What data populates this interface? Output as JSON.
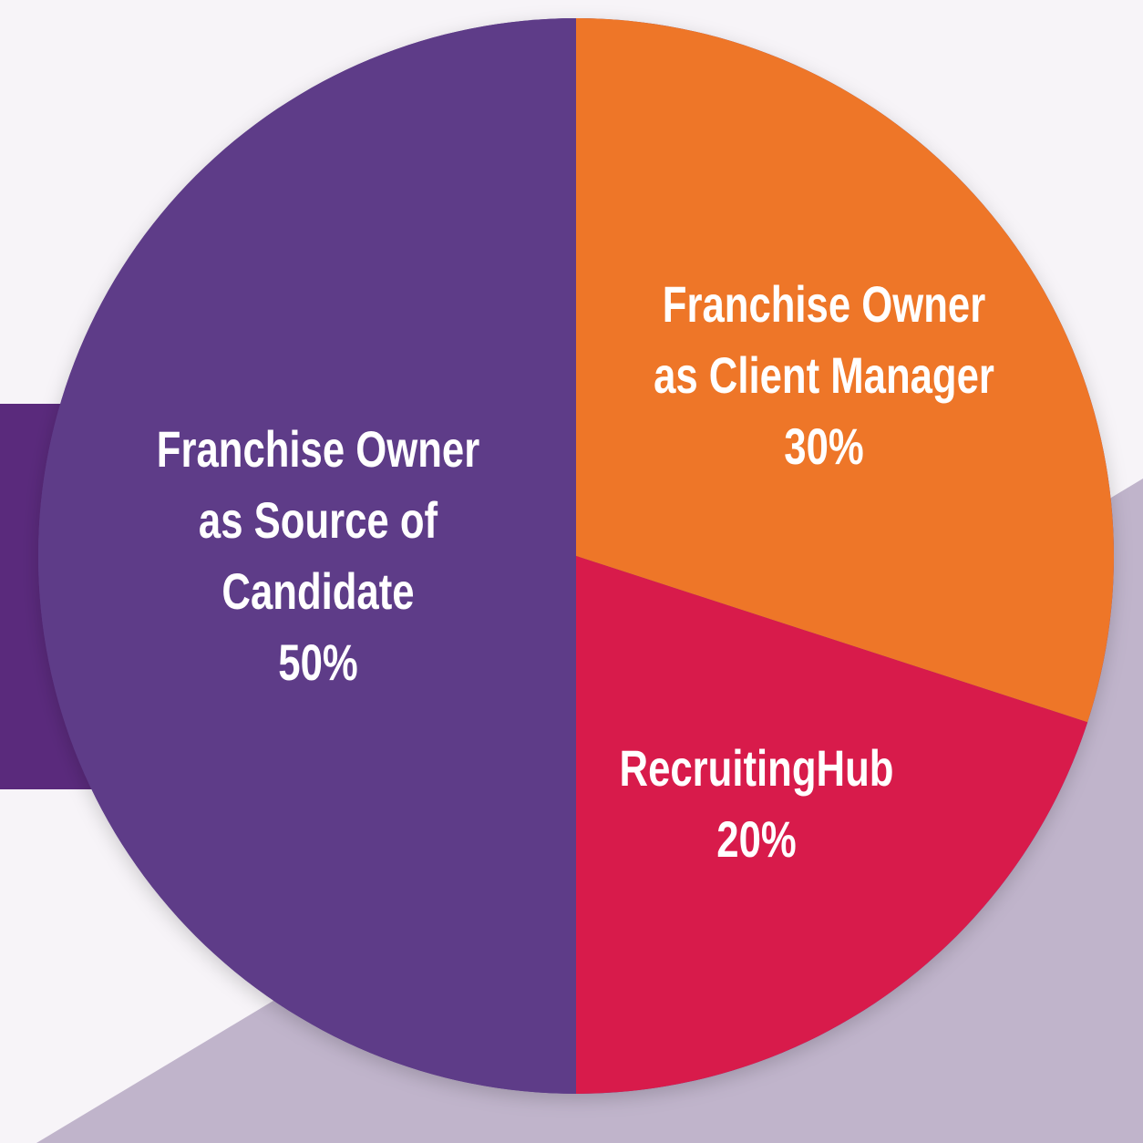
{
  "chart_data": {
    "type": "pie",
    "categories": [
      "Franchise Owner as Client Manager",
      "RecruitingHub",
      "Franchise Owner as Source of Candidate"
    ],
    "values": [
      30,
      20,
      50
    ],
    "value_labels": [
      "30%",
      "20%",
      "50%"
    ],
    "colors": [
      "#ee7628",
      "#d81b4b",
      "#5e3c88"
    ]
  }
}
